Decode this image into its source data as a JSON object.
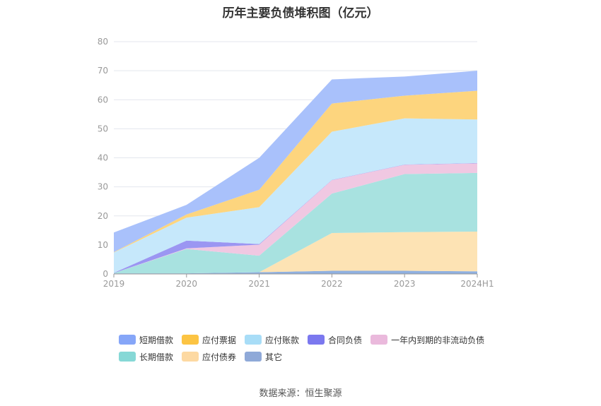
{
  "title": "历年主要负债堆积图（亿元）",
  "source": "数据来源：恒生聚源",
  "chart_data": {
    "type": "area",
    "stacked": true,
    "x": [
      "2019",
      "2020",
      "2021",
      "2022",
      "2023",
      "2024H1"
    ],
    "ylim": [
      0,
      80
    ],
    "yticks": [
      0,
      10,
      20,
      30,
      40,
      50,
      60,
      70,
      80
    ],
    "grid": true,
    "legend_position": "bottom",
    "series": [
      {
        "name": "其它",
        "color": "#8fb0e0",
        "values": [
          0.2,
          0.2,
          0.6,
          1.1,
          1.1,
          0.9
        ]
      },
      {
        "name": "应付债券",
        "color": "#fde3b4",
        "values": [
          0,
          0,
          0,
          13.0,
          13.3,
          13.7
        ]
      },
      {
        "name": "长期借款",
        "color": "#a8e2e0",
        "values": [
          0.1,
          8.4,
          5.7,
          13.6,
          20.0,
          20.2
        ]
      },
      {
        "name": "一年内到期的非流动负债",
        "color": "#f0c8e2",
        "values": [
          0,
          0.2,
          3.8,
          4.6,
          3.2,
          3.3
        ]
      },
      {
        "name": "合同负债",
        "color": "#9b96f2",
        "values": [
          0.1,
          2.7,
          0.2,
          0.1,
          0.1,
          0.1
        ]
      },
      {
        "name": "应付账款",
        "color": "#c6e8fb",
        "values": [
          7.0,
          7.9,
          12.7,
          16.6,
          15.9,
          15.0
        ]
      },
      {
        "name": "应付票据",
        "color": "#fdd57e",
        "values": [
          0.1,
          1.1,
          6.0,
          9.7,
          7.8,
          9.9
        ]
      },
      {
        "name": "短期借款",
        "color": "#a9c1fb",
        "values": [
          6.8,
          3.3,
          11.0,
          8.3,
          6.6,
          6.9
        ]
      }
    ],
    "legend": [
      {
        "name": "短期借款",
        "color": "#86a6f8"
      },
      {
        "name": "应付票据",
        "color": "#fcc443"
      },
      {
        "name": "应付账款",
        "color": "#a8ddf7"
      },
      {
        "name": "合同负债",
        "color": "#7b78ef"
      },
      {
        "name": "一年内到期的非流动负债",
        "color": "#eab9dc"
      },
      {
        "name": "长期借款",
        "color": "#86d8d6"
      },
      {
        "name": "应付债券",
        "color": "#fdd9a2"
      },
      {
        "name": "其它",
        "color": "#8fa9d8"
      }
    ]
  }
}
